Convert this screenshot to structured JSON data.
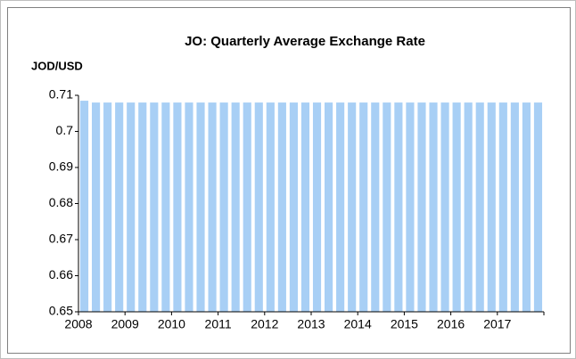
{
  "chart_data": {
    "type": "bar",
    "title": "JO: Quarterly Average Exchange Rate",
    "y_label": "JOD/USD",
    "categories": [
      "2008",
      null,
      null,
      null,
      "2009",
      null,
      null,
      null,
      "2010",
      null,
      null,
      null,
      "2011",
      null,
      null,
      null,
      "2012",
      null,
      null,
      null,
      "2013",
      null,
      null,
      null,
      "2014",
      null,
      null,
      null,
      "2015",
      null,
      null,
      null,
      "2016",
      null,
      null,
      null,
      "2017",
      null,
      null,
      null
    ],
    "values": [
      0.7085,
      0.708,
      0.708,
      0.708,
      0.708,
      0.708,
      0.708,
      0.708,
      0.708,
      0.708,
      0.708,
      0.708,
      0.708,
      0.708,
      0.708,
      0.708,
      0.708,
      0.708,
      0.708,
      0.708,
      0.708,
      0.708,
      0.708,
      0.708,
      0.708,
      0.708,
      0.708,
      0.708,
      0.708,
      0.708,
      0.708,
      0.708,
      0.708,
      0.708,
      0.708,
      0.708,
      0.708,
      0.708,
      0.708,
      0.708
    ],
    "color": "#a8cff5",
    "ylim": [
      0.65,
      0.71
    ],
    "yticks": [
      0.65,
      0.66,
      0.67,
      0.68,
      0.69,
      0.7,
      {
        "value": 0.71,
        "label": "0.71"
      }
    ],
    "grid": false
  }
}
